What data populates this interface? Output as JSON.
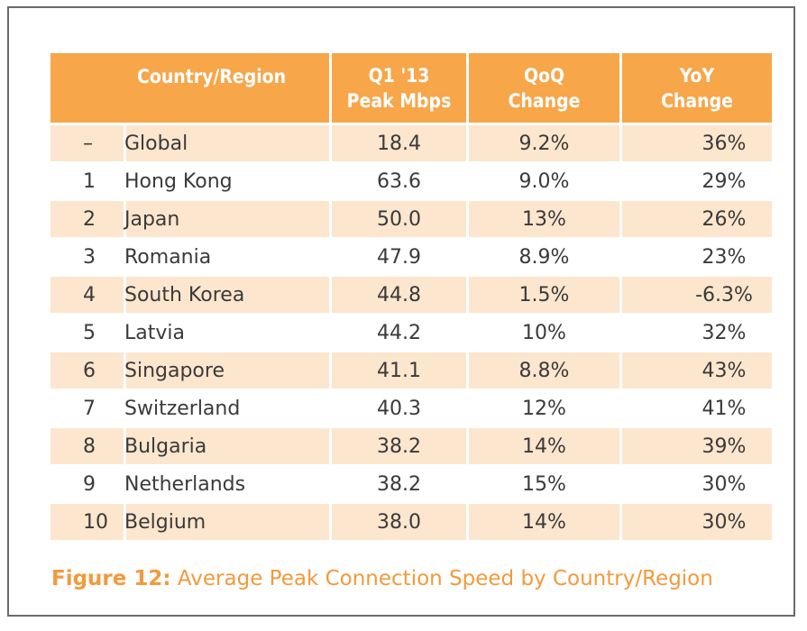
{
  "table": {
    "headers": {
      "country_region": "Country/Region",
      "peak_line1": "Q1 '13",
      "peak_line2": "Peak Mbps",
      "qoq_line1": "QoQ",
      "qoq_line2": "Change",
      "yoy_line1": "YoY",
      "yoy_line2": "Change"
    },
    "rows": [
      {
        "rank": "–",
        "country": "Global",
        "peak": "18.4",
        "qoq": "9.2%",
        "yoy": "36%"
      },
      {
        "rank": "1",
        "country": "Hong Kong",
        "peak": "63.6",
        "qoq": "9.0%",
        "yoy": "29%"
      },
      {
        "rank": "2",
        "country": "Japan",
        "peak": "50.0",
        "qoq": "13%",
        "yoy": "26%"
      },
      {
        "rank": "3",
        "country": "Romania",
        "peak": "47.9",
        "qoq": "8.9%",
        "yoy": "23%"
      },
      {
        "rank": "4",
        "country": "South Korea",
        "peak": "44.8",
        "qoq": "1.5%",
        "yoy": "-6.3%"
      },
      {
        "rank": "5",
        "country": "Latvia",
        "peak": "44.2",
        "qoq": "10%",
        "yoy": "32%"
      },
      {
        "rank": "6",
        "country": "Singapore",
        "peak": "41.1",
        "qoq": "8.8%",
        "yoy": "43%"
      },
      {
        "rank": "7",
        "country": "Switzerland",
        "peak": "40.3",
        "qoq": "12%",
        "yoy": "41%"
      },
      {
        "rank": "8",
        "country": "Bulgaria",
        "peak": "38.2",
        "qoq": "14%",
        "yoy": "39%"
      },
      {
        "rank": "9",
        "country": "Netherlands",
        "peak": "38.2",
        "qoq": "15%",
        "yoy": "30%"
      },
      {
        "rank": "10",
        "country": "Belgium",
        "peak": "38.0",
        "qoq": "14%",
        "yoy": "30%"
      }
    ]
  },
  "caption": {
    "label": "Figure 12:",
    "text": "Average Peak Connection Speed by Country/Region"
  },
  "colors": {
    "header_bg": "#f7a64a",
    "stripe_bg": "#fde6ce",
    "caption": "#f29a3c",
    "frame_border": "#6b6b6b"
  }
}
